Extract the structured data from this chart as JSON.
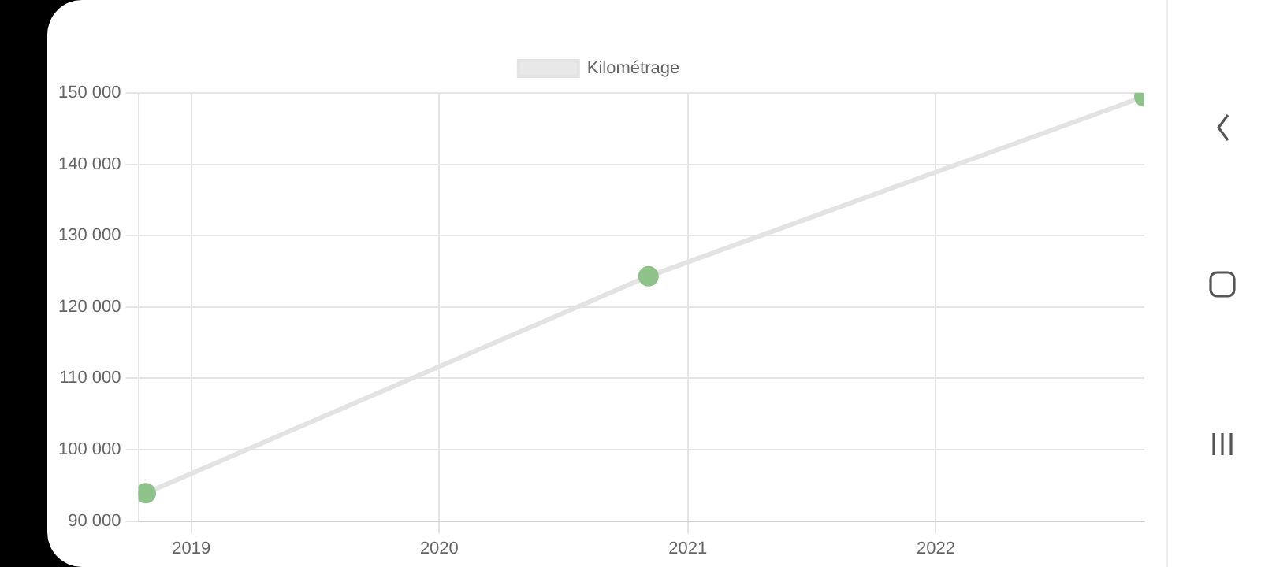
{
  "chart_data": {
    "type": "line",
    "x": [
      "2018-10-26",
      "2020-11-04",
      "2022-11-04"
    ],
    "series": [
      {
        "name": "Kilométrage",
        "color": "#e3e3e3",
        "colors": [
          "#8fc18a",
          "#8fc18a",
          "#8fc18a"
        ],
        "values": [
          93900,
          124300,
          149500
        ]
      }
    ],
    "xlim": [
      "2018-10-15",
      "2022-11-04"
    ],
    "xticks": [
      {
        "value": "2019-01-01",
        "label": "2019"
      },
      {
        "value": "2020-01-01",
        "label": "2020"
      },
      {
        "value": "2021-01-01",
        "label": "2021"
      },
      {
        "value": "2022-01-01",
        "label": "2022"
      }
    ],
    "ylim": [
      90000,
      150000
    ],
    "yticks": [
      {
        "value": 90000,
        "label": "90 000"
      },
      {
        "value": 100000,
        "label": "100 000"
      },
      {
        "value": 110000,
        "label": "110 000"
      },
      {
        "value": 120000,
        "label": "120 000"
      },
      {
        "value": 130000,
        "label": "130 000"
      },
      {
        "value": 140000,
        "label": "140 000"
      },
      {
        "value": 150000,
        "label": "150 000"
      }
    ],
    "grid": true,
    "legend": "top",
    "marker": "circle",
    "line_style": "solid"
  }
}
